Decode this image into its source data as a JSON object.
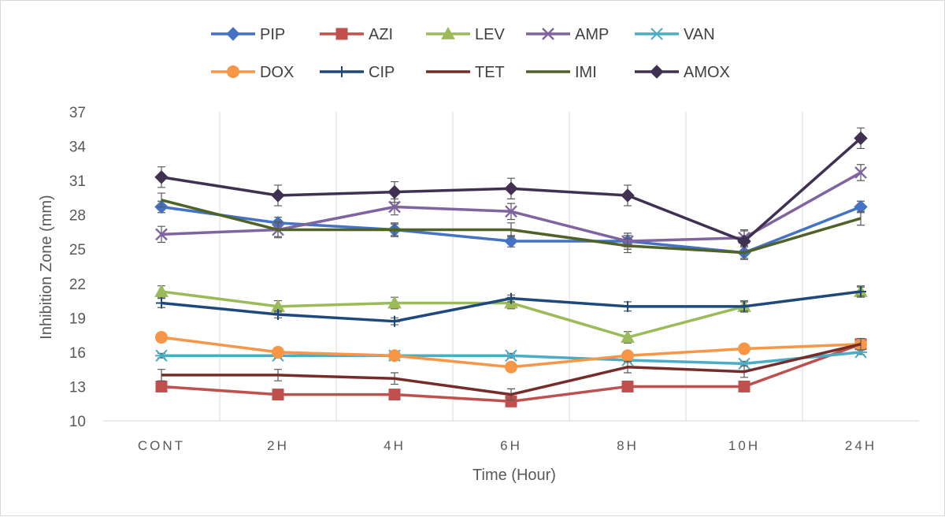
{
  "chart_data": {
    "type": "line",
    "xlabel": "Time (Hour)",
    "ylabel": "Inhibition Zone (mm)",
    "categories": [
      "CONT",
      "2H",
      "4H",
      "6H",
      "8H",
      "10H",
      "24H"
    ],
    "ylim": [
      10,
      37
    ],
    "yticks": [
      10,
      13,
      16,
      19,
      22,
      25,
      28,
      31,
      34,
      37
    ],
    "grid": "vertical",
    "legend_position": "top",
    "series": [
      {
        "name": "PIP",
        "color": "#4472c4",
        "marker": "diamond",
        "values": [
          28.7,
          27.3,
          26.7,
          25.7,
          25.7,
          24.7,
          28.7
        ],
        "error": [
          0.5,
          0.5,
          0.5,
          0.5,
          0.5,
          0.5,
          0.5
        ]
      },
      {
        "name": "AZI",
        "color": "#c0504d",
        "marker": "square",
        "values": [
          13.0,
          12.3,
          12.3,
          11.7,
          13.0,
          13.0,
          16.7
        ],
        "error": [
          0.4,
          0.4,
          0.4,
          0.4,
          0.4,
          0.4,
          0.4
        ]
      },
      {
        "name": "LEV",
        "color": "#9bbb59",
        "marker": "triangle",
        "values": [
          21.3,
          20.0,
          20.3,
          20.3,
          17.3,
          20.0,
          21.3
        ],
        "error": [
          0.5,
          0.5,
          0.5,
          0.5,
          0.5,
          0.5,
          0.5
        ]
      },
      {
        "name": "AMP",
        "color": "#8064a2",
        "marker": "x",
        "values": [
          26.3,
          26.7,
          28.7,
          28.3,
          25.7,
          26.0,
          31.7
        ],
        "error": [
          0.7,
          0.7,
          0.7,
          0.7,
          0.7,
          0.7,
          0.7
        ]
      },
      {
        "name": "VAN",
        "color": "#4bacc6",
        "marker": "asterisk",
        "values": [
          15.7,
          15.7,
          15.7,
          15.7,
          15.3,
          15.0,
          16.0
        ],
        "error": [
          0.2,
          0.2,
          0.2,
          0.2,
          0.2,
          0.2,
          0.2
        ]
      },
      {
        "name": "DOX",
        "color": "#f79646",
        "marker": "circle",
        "values": [
          17.3,
          16.0,
          15.7,
          14.7,
          15.7,
          16.3,
          16.7
        ],
        "error": [
          0.3,
          0.3,
          0.3,
          0.3,
          0.3,
          0.3,
          0.3
        ]
      },
      {
        "name": "CIP",
        "color": "#1f497d",
        "marker": "plus",
        "values": [
          20.3,
          19.3,
          18.7,
          20.7,
          20.0,
          20.0,
          21.3
        ],
        "error": [
          0.4,
          0.3,
          0.3,
          0.3,
          0.4,
          0.4,
          0.4
        ]
      },
      {
        "name": "TET",
        "color": "#772c2a",
        "marker": "none",
        "values": [
          14.0,
          14.0,
          13.7,
          12.3,
          14.7,
          14.3,
          16.7
        ],
        "error": [
          0.5,
          0.5,
          0.5,
          0.5,
          0.5,
          0.5,
          0.5
        ]
      },
      {
        "name": "IMI",
        "color": "#4f6228",
        "marker": "none",
        "values": [
          29.3,
          26.7,
          26.7,
          26.7,
          25.3,
          24.7,
          27.7
        ],
        "error": [
          0.6,
          0.6,
          0.6,
          0.6,
          0.6,
          0.6,
          0.6
        ]
      },
      {
        "name": "AMOX",
        "color": "#403152",
        "marker": "diamond",
        "values": [
          31.3,
          29.7,
          30.0,
          30.3,
          29.7,
          25.7,
          34.7
        ],
        "error": [
          0.9,
          0.9,
          0.9,
          0.9,
          0.9,
          0.9,
          0.9
        ]
      }
    ]
  }
}
